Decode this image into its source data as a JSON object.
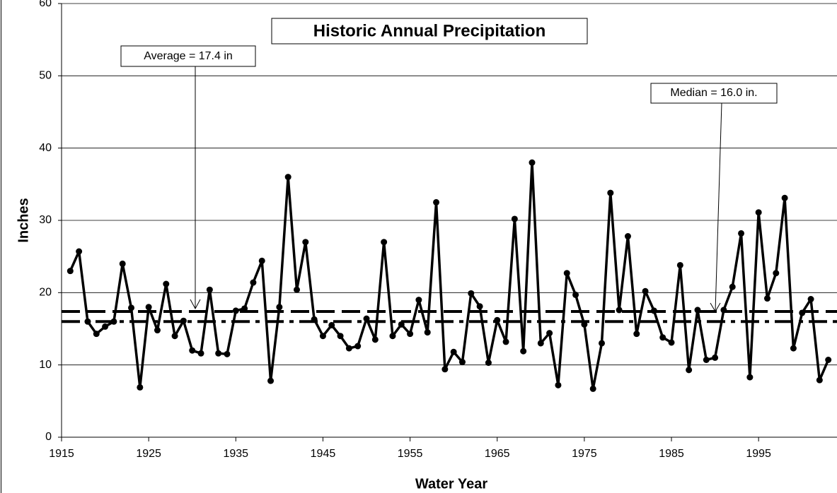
{
  "chart_data": {
    "type": "line",
    "title": "Historic Annual Precipitation",
    "x_label": "Water Year",
    "y_label": "Inches",
    "x": [
      1916,
      1917,
      1918,
      1919,
      1920,
      1921,
      1922,
      1923,
      1924,
      1925,
      1926,
      1927,
      1928,
      1929,
      1930,
      1931,
      1932,
      1933,
      1934,
      1935,
      1936,
      1937,
      1938,
      1939,
      1940,
      1941,
      1942,
      1943,
      1944,
      1945,
      1946,
      1947,
      1948,
      1949,
      1950,
      1951,
      1952,
      1953,
      1954,
      1955,
      1956,
      1957,
      1958,
      1959,
      1960,
      1961,
      1962,
      1963,
      1964,
      1965,
      1966,
      1967,
      1968,
      1969,
      1970,
      1971,
      1972,
      1973,
      1974,
      1975,
      1976,
      1977,
      1978,
      1979,
      1980,
      1981,
      1982,
      1983,
      1984,
      1985,
      1986,
      1987,
      1988,
      1989,
      1990,
      1991,
      1992,
      1993,
      1994,
      1995,
      1996,
      1997,
      1998,
      1999,
      2000,
      2001,
      2002,
      2003
    ],
    "series": [
      {
        "name": "Annual Precipitation",
        "color": "#000000",
        "values": [
          23,
          25.7,
          16,
          14.3,
          15.3,
          16,
          24,
          17.9,
          6.9,
          18,
          14.8,
          21.2,
          14,
          16.1,
          12,
          11.6,
          20.4,
          11.6,
          11.5,
          17.5,
          17.8,
          21.4,
          24.4,
          7.8,
          18,
          36,
          20.4,
          27,
          16.3,
          14,
          15.5,
          14,
          12.3,
          12.6,
          16.4,
          13.5,
          27,
          14,
          15.6,
          14.3,
          19,
          14.5,
          32.5,
          9.4,
          11.8,
          10.4,
          19.9,
          18.1,
          10.3,
          16.2,
          13.2,
          30.2,
          11.9,
          38,
          13,
          14.4,
          7.2,
          22.7,
          19.7,
          15.6,
          6.7,
          13,
          33.8,
          17.6,
          27.8,
          14.3,
          20.2,
          17.5,
          13.8,
          13.1,
          23.8,
          9.3,
          17.6,
          10.7,
          11,
          17.6,
          20.8,
          28.2,
          8.3,
          31.1,
          19.2,
          22.7,
          33.1,
          12.3,
          17.2,
          19.1,
          7.9,
          10.7
        ]
      }
    ],
    "reference_lines": [
      {
        "label": "Average = 17.4 in",
        "value": 17.4,
        "style": "dashed"
      },
      {
        "label": "Median = 16.0 in.",
        "value": 16.0,
        "style": "dashdot"
      }
    ],
    "xlim": [
      1915,
      2004
    ],
    "xticks": [
      1915,
      1925,
      1935,
      1945,
      1955,
      1965,
      1975,
      1985,
      1995
    ],
    "ylim": [
      0,
      60
    ],
    "yticks": [
      0,
      10,
      20,
      30,
      40,
      50,
      60
    ],
    "grid": true
  }
}
